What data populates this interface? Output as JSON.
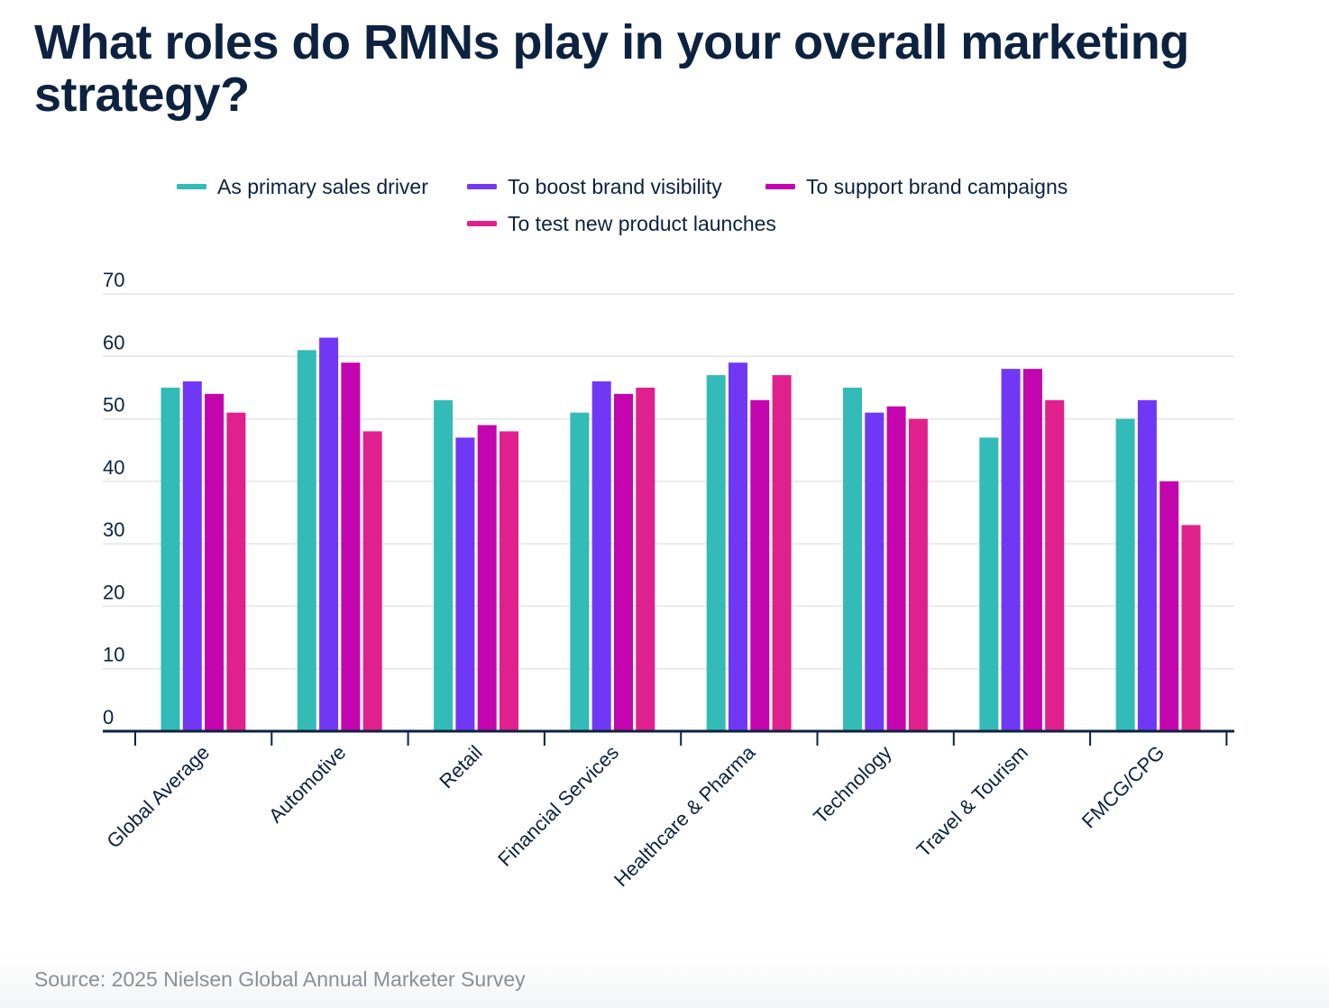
{
  "page": {
    "title": "What roles do RMNs play in your overall marketing strategy?",
    "source": "Source: 2025 Nielsen Global Annual Marketer Survey"
  },
  "chart_data": {
    "type": "bar",
    "title": "What roles do RMNs play in your overall marketing strategy?",
    "xlabel": "",
    "ylabel": "",
    "ylim": [
      0,
      70
    ],
    "yticks": [
      0,
      10,
      20,
      30,
      40,
      50,
      60,
      70
    ],
    "grid": true,
    "legend_position": "top-center",
    "categories": [
      "Global Average",
      "Automotive",
      "Retail",
      "Financial Services",
      "Healthcare & Pharma",
      "Technology",
      "Travel & Tourism",
      "FMCG/CPG"
    ],
    "series": [
      {
        "name": "As primary sales driver",
        "color": "#33bbb8",
        "values": [
          55,
          61,
          53,
          51,
          57,
          55,
          47,
          50
        ]
      },
      {
        "name": "To boost brand visibility",
        "color": "#7038f5",
        "values": [
          56,
          63,
          47,
          56,
          59,
          51,
          58,
          53
        ]
      },
      {
        "name": "To support brand campaigns",
        "color": "#c305ae",
        "values": [
          54,
          59,
          49,
          54,
          53,
          52,
          58,
          40
        ]
      },
      {
        "name": "To test new product launches",
        "color": "#e0208c",
        "values": [
          51,
          48,
          48,
          55,
          57,
          50,
          53,
          33
        ]
      }
    ]
  }
}
